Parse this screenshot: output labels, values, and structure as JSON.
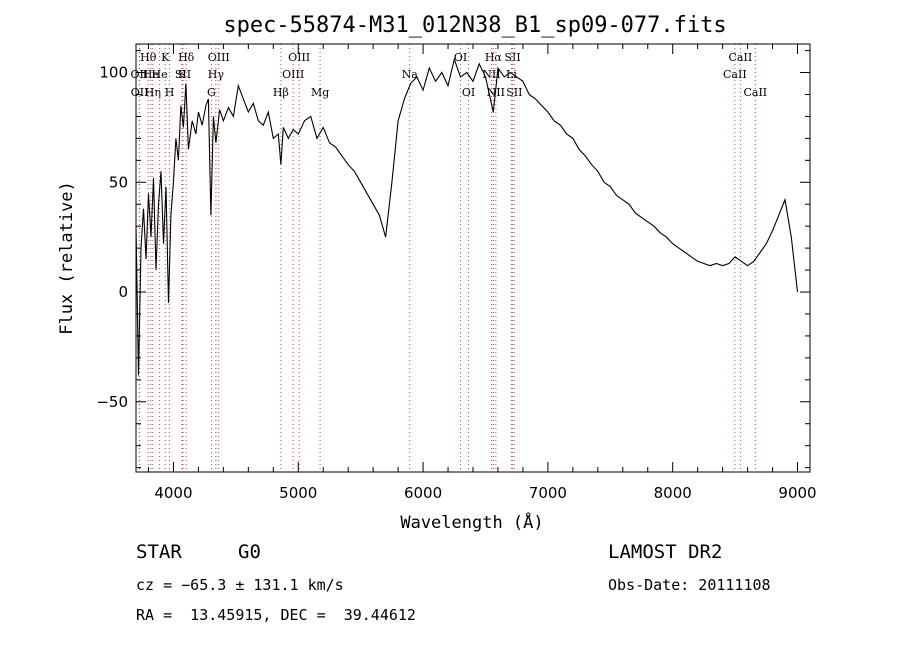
{
  "chart_data": {
    "type": "line",
    "title": "spec-55874-M31_012N38_B1_sp09-077.fits",
    "xlabel": "Wavelength (Å)",
    "ylabel": "Flux (relative)",
    "xlim": [
      3700,
      9100
    ],
    "ylim": [
      -82,
      113
    ],
    "xticks": [
      "4000",
      "5000",
      "6000",
      "7000",
      "8000",
      "9000"
    ],
    "xtick_values": [
      4000,
      5000,
      6000,
      7000,
      8000,
      9000
    ],
    "yticks": [
      "−50",
      "0",
      "50",
      "100"
    ],
    "ytick_values": [
      -50,
      0,
      50,
      100
    ],
    "grid": false,
    "series": [
      {
        "x": [
          3700,
          3720,
          3740,
          3760,
          3780,
          3800,
          3820,
          3840,
          3860,
          3880,
          3900,
          3920,
          3940,
          3960,
          3980,
          4000,
          4020,
          4040,
          4060,
          4080,
          4100,
          4120,
          4150,
          4180,
          4200,
          4230,
          4260,
          4280,
          4300,
          4320,
          4340,
          4370,
          4400,
          4440,
          4480,
          4520,
          4560,
          4600,
          4640,
          4680,
          4720,
          4760,
          4800,
          4840,
          4861,
          4880,
          4920,
          4960,
          5000,
          5050,
          5100,
          5150,
          5200,
          5250,
          5300,
          5350,
          5400,
          5450,
          5500,
          5550,
          5600,
          5650,
          5700,
          5750,
          5800,
          5850,
          5900,
          5950,
          6000,
          6050,
          6100,
          6150,
          6200,
          6250,
          6300,
          6350,
          6400,
          6450,
          6500,
          6563,
          6600,
          6650,
          6700,
          6750,
          6800,
          6850,
          6900,
          6950,
          7000,
          7050,
          7100,
          7150,
          7200,
          7250,
          7300,
          7350,
          7400,
          7450,
          7500,
          7550,
          7600,
          7650,
          7700,
          7750,
          7800,
          7850,
          7900,
          7950,
          8000,
          8050,
          8100,
          8150,
          8200,
          8250,
          8300,
          8350,
          8400,
          8450,
          8500,
          8550,
          8600,
          8650,
          8700,
          8750,
          8800,
          8850,
          8900,
          8950,
          9000
        ],
        "y": [
          30,
          -38,
          20,
          38,
          15,
          45,
          25,
          52,
          10,
          40,
          55,
          22,
          48,
          -5,
          35,
          50,
          70,
          60,
          85,
          75,
          95,
          65,
          78,
          72,
          82,
          76,
          85,
          88,
          35,
          80,
          68,
          83,
          78,
          84,
          80,
          94,
          88,
          82,
          86,
          78,
          76,
          82,
          70,
          72,
          58,
          75,
          70,
          74,
          72,
          78,
          80,
          70,
          75,
          68,
          66,
          62,
          58,
          55,
          50,
          45,
          40,
          35,
          25,
          50,
          78,
          88,
          95,
          98,
          92,
          102,
          96,
          100,
          94,
          106,
          98,
          100,
          96,
          104,
          98,
          82,
          102,
          98,
          100,
          98,
          96,
          90,
          88,
          85,
          82,
          78,
          76,
          72,
          70,
          65,
          62,
          58,
          55,
          50,
          48,
          44,
          42,
          40,
          36,
          34,
          32,
          30,
          27,
          25,
          22,
          20,
          18,
          16,
          14,
          13,
          12,
          13,
          12,
          13,
          16,
          14,
          12,
          14,
          18,
          22,
          28,
          35,
          42,
          25,
          0
        ]
      }
    ],
    "lines": [
      {
        "label": "Hθ",
        "x": 3798,
        "row": 0
      },
      {
        "label": "OII",
        "x": 3727,
        "row": 1
      },
      {
        "label": "OII",
        "x": 3729,
        "row": 2
      },
      {
        "label": "He",
        "x": 3819,
        "row": 1
      },
      {
        "label": "Hη",
        "x": 3835,
        "row": 2
      },
      {
        "label": "K",
        "x": 3934,
        "row": 0
      },
      {
        "label": "H",
        "x": 3969,
        "row": 2
      },
      {
        "label": "He",
        "x": 3889,
        "row": 1
      },
      {
        "label": "S",
        "x": 4068,
        "row": 1
      },
      {
        "label": "SII",
        "x": 4076,
        "row": 1
      },
      {
        "label": "Hδ",
        "x": 4102,
        "row": 0
      },
      {
        "label": "OIII",
        "x": 4363,
        "row": 0
      },
      {
        "label": "Hγ",
        "x": 4340,
        "row": 1
      },
      {
        "label": "G",
        "x": 4304,
        "row": 2
      },
      {
        "label": "OIII",
        "x": 5007,
        "row": 0
      },
      {
        "label": "OIII",
        "x": 4959,
        "row": 1
      },
      {
        "label": "Hβ",
        "x": 4861,
        "row": 2
      },
      {
        "label": "Mg",
        "x": 5175,
        "row": 2
      },
      {
        "label": "Na",
        "x": 5893,
        "row": 1
      },
      {
        "label": "OI",
        "x": 6300,
        "row": 0
      },
      {
        "label": "OI",
        "x": 6364,
        "row": 2
      },
      {
        "label": "Hα",
        "x": 6563,
        "row": 0
      },
      {
        "label": "NII",
        "x": 6548,
        "row": 1
      },
      {
        "label": "NII",
        "x": 6583,
        "row": 2
      },
      {
        "label": "SII",
        "x": 6717,
        "row": 0
      },
      {
        "label": "SII",
        "x": 6731,
        "row": 2
      },
      {
        "label": "Li",
        "x": 6708,
        "row": 1
      },
      {
        "label": "CaII",
        "x": 8542,
        "row": 0
      },
      {
        "label": "CaII",
        "x": 8498,
        "row": 1
      },
      {
        "label": "CaII",
        "x": 8662,
        "row": 2
      }
    ]
  },
  "info": {
    "class": "STAR",
    "subclass": "G0",
    "survey": "LAMOST DR2",
    "cz": "cz = −65.3 ± 131.1 km/s",
    "obs_date": "Obs-Date: 20111108",
    "coords": "RA =  13.45915, DEC =  39.44612"
  }
}
